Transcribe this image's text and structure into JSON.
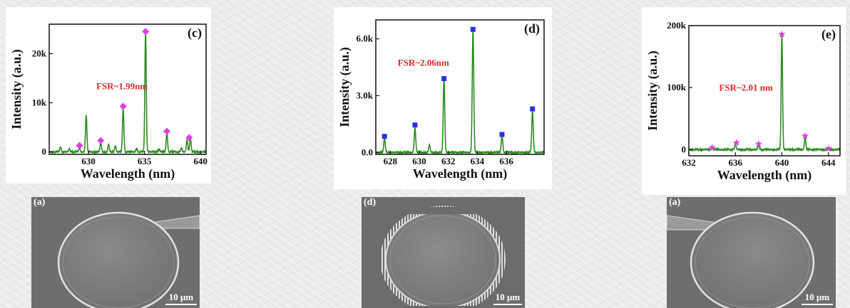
{
  "chart_data": [
    {
      "id": "c",
      "type": "line",
      "panel_label": "(c)",
      "annotation": "FSR~1.99nm",
      "xlabel": "Wavelength (nm)",
      "ylabel": "Intensity (a.u.)",
      "xlim": [
        626.5,
        640.5
      ],
      "ylim": [
        -500,
        26000
      ],
      "x_ticks": [
        630,
        635,
        640
      ],
      "x_tick_labels": [
        "630",
        "635",
        "640"
      ],
      "y_ticks": [
        0,
        10000,
        20000
      ],
      "y_tick_labels": [
        "0",
        "10k",
        "20k"
      ],
      "line_color": "#2e8b22",
      "marker_color": "#e13ce6",
      "marker_shape": "diamond",
      "peaks": [
        {
          "x": 627.5,
          "y": 1000
        },
        {
          "x": 628.3,
          "y": 600
        },
        {
          "x": 629.2,
          "y": 800
        },
        {
          "x": 629.8,
          "y": 7500
        },
        {
          "x": 631.1,
          "y": 2000
        },
        {
          "x": 631.8,
          "y": 1500
        },
        {
          "x": 632.4,
          "y": 1200
        },
        {
          "x": 633.1,
          "y": 9000
        },
        {
          "x": 634.3,
          "y": 700
        },
        {
          "x": 635.1,
          "y": 24500
        },
        {
          "x": 636.3,
          "y": 600
        },
        {
          "x": 637.0,
          "y": 4000
        },
        {
          "x": 638.3,
          "y": 800
        },
        {
          "x": 638.8,
          "y": 2500
        },
        {
          "x": 639.1,
          "y": 2800
        }
      ],
      "markers": [
        {
          "x": 629.2,
          "y": 1300
        },
        {
          "x": 631.1,
          "y": 2300
        },
        {
          "x": 633.1,
          "y": 9300
        },
        {
          "x": 635.1,
          "y": 24500
        },
        {
          "x": 637.0,
          "y": 4200
        },
        {
          "x": 639.0,
          "y": 2900
        }
      ]
    },
    {
      "id": "d",
      "type": "line",
      "panel_label": "(d)",
      "annotation": "FSR~2.06nm",
      "xlabel": "Wavelength (nm)",
      "ylabel": "Intensity (a.u.)",
      "xlim": [
        627.0,
        638.6
      ],
      "ylim": [
        -100,
        7000
      ],
      "x_ticks": [
        628,
        630,
        632,
        634,
        636
      ],
      "x_tick_labels": [
        "628",
        "630",
        "632",
        "634",
        "636"
      ],
      "y_ticks": [
        0,
        3000,
        6000
      ],
      "y_tick_labels": [
        "0.0",
        "3.0k",
        "6.0k"
      ],
      "line_color": "#2e8b22",
      "marker_color": "#2c2ee3",
      "marker_shape": "square",
      "peaks": [
        {
          "x": 627.6,
          "y": 750
        },
        {
          "x": 629.7,
          "y": 1300
        },
        {
          "x": 630.7,
          "y": 400
        },
        {
          "x": 631.7,
          "y": 3900
        },
        {
          "x": 633.7,
          "y": 6500
        },
        {
          "x": 635.7,
          "y": 900
        },
        {
          "x": 637.8,
          "y": 2200
        }
      ],
      "markers": [
        {
          "x": 627.6,
          "y": 850
        },
        {
          "x": 629.7,
          "y": 1450
        },
        {
          "x": 631.7,
          "y": 3900
        },
        {
          "x": 633.7,
          "y": 6500
        },
        {
          "x": 635.7,
          "y": 950
        },
        {
          "x": 637.8,
          "y": 2300
        }
      ]
    },
    {
      "id": "e",
      "type": "line",
      "panel_label": "(e)",
      "annotation": "FSR~2.01 nm",
      "xlabel": "Wavelength (nm)",
      "ylabel": "Intensity (a.u.)",
      "xlim": [
        632,
        645
      ],
      "ylim": [
        -10000,
        200000
      ],
      "x_ticks": [
        632,
        636,
        640,
        644
      ],
      "x_tick_labels": [
        "632",
        "636",
        "640",
        "644"
      ],
      "y_ticks": [
        0,
        100000,
        200000
      ],
      "y_tick_labels": [
        "0",
        "100k",
        "200k"
      ],
      "line_color": "#2e8b22",
      "marker_color": "#e13ce6",
      "marker_shape": "star",
      "peaks": [
        {
          "x": 634.0,
          "y": 2500
        },
        {
          "x": 636.0,
          "y": 10000
        },
        {
          "x": 638.0,
          "y": 8000
        },
        {
          "x": 640.0,
          "y": 185000
        },
        {
          "x": 642.0,
          "y": 20000
        },
        {
          "x": 644.0,
          "y": 2000
        }
      ],
      "markers": [
        {
          "x": 634.0,
          "y": 3000
        },
        {
          "x": 636.1,
          "y": 11000
        },
        {
          "x": 638.0,
          "y": 9000
        },
        {
          "x": 640.0,
          "y": 186000
        },
        {
          "x": 642.0,
          "y": 22000
        },
        {
          "x": 644.0,
          "y": 1500
        }
      ]
    }
  ],
  "sem_images": [
    {
      "label": "(a)",
      "scale": "10 μm",
      "description": "disk with one waveguide"
    },
    {
      "label": "(d)",
      "scale": "10 μm",
      "description": "disk with gratings"
    },
    {
      "label": "(a)",
      "scale": "10 μm",
      "description": "disk with one waveguide"
    }
  ],
  "colors": {
    "axis": "#111111",
    "annotation": "#d42a2a",
    "sem_background": "#6d6d6d"
  }
}
